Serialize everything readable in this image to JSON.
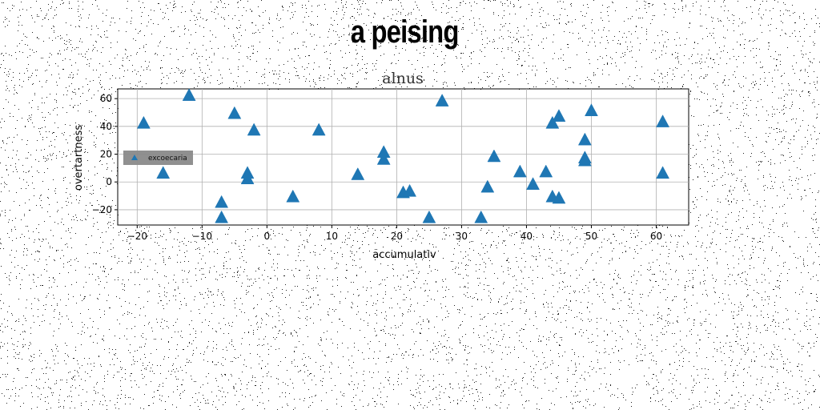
{
  "page": {
    "title": "a peising"
  },
  "chart_data": {
    "type": "scatter",
    "title": "alnus",
    "xlabel": "accumulativ",
    "ylabel": "overtartness",
    "xlim": [
      -23,
      65
    ],
    "ylim": [
      -31,
      67
    ],
    "xticks": [
      -20,
      -10,
      0,
      10,
      20,
      30,
      40,
      50,
      60
    ],
    "yticks": [
      -20,
      0,
      20,
      40,
      60
    ],
    "grid": true,
    "legend_position": "center-left",
    "series": [
      {
        "name": "excoecaria",
        "marker": "triangle",
        "color": "#1f77b4",
        "points": [
          [
            -19,
            42
          ],
          [
            -16,
            6
          ],
          [
            -12,
            62
          ],
          [
            -7,
            -15
          ],
          [
            -7,
            -26
          ],
          [
            -5,
            49
          ],
          [
            -3,
            6
          ],
          [
            -3,
            2
          ],
          [
            -2,
            37
          ],
          [
            4,
            -11
          ],
          [
            8,
            37
          ],
          [
            14,
            5
          ],
          [
            18,
            21
          ],
          [
            18,
            16
          ],
          [
            21,
            -8
          ],
          [
            22,
            -7
          ],
          [
            25,
            -26
          ],
          [
            27,
            58
          ],
          [
            33,
            -26
          ],
          [
            34,
            -4
          ],
          [
            35,
            18
          ],
          [
            39,
            7
          ],
          [
            41,
            -2
          ],
          [
            43,
            7
          ],
          [
            44,
            42
          ],
          [
            44,
            -11
          ],
          [
            45,
            47
          ],
          [
            45,
            -12
          ],
          [
            49,
            30
          ],
          [
            49,
            17
          ],
          [
            49,
            15
          ],
          [
            50,
            51
          ],
          [
            61,
            43
          ],
          [
            61,
            6
          ]
        ]
      }
    ]
  }
}
